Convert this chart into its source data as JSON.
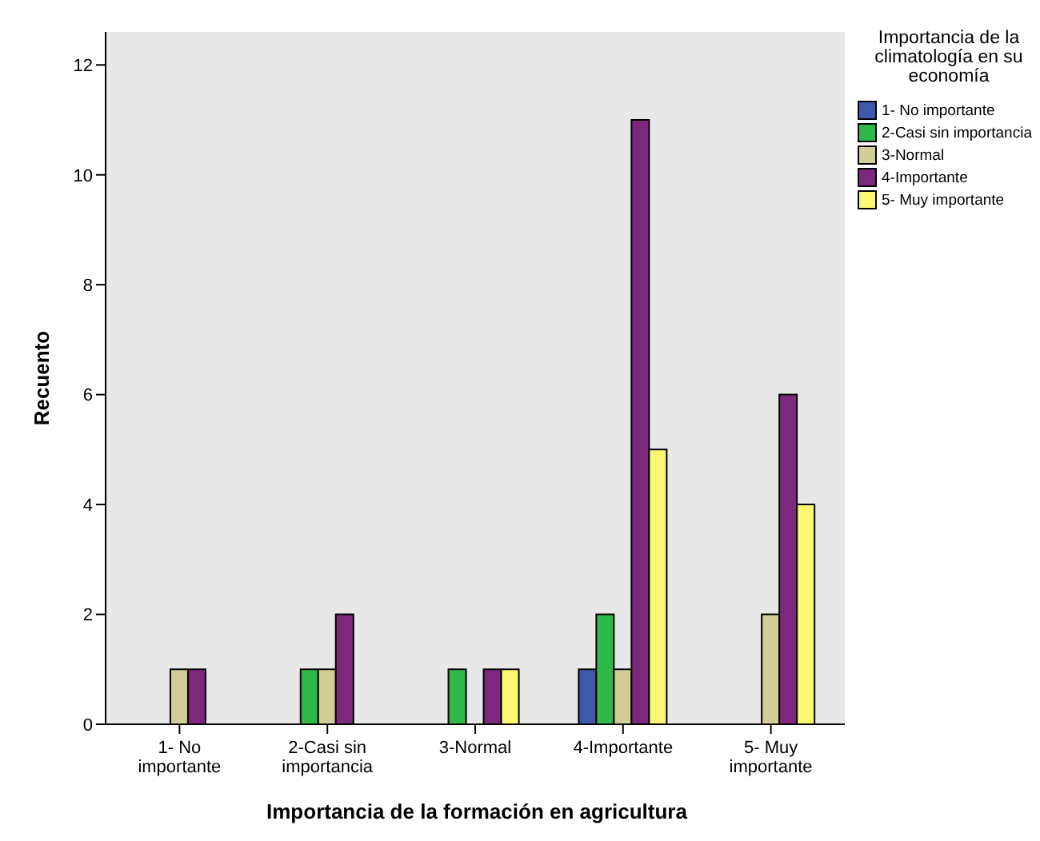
{
  "chart_data": {
    "type": "bar",
    "xlabel": "Importancia de la formación en agricultura",
    "ylabel": "Recuento",
    "legend_title": "Importancia de la climatología en su economía",
    "categories": [
      "1- No importante",
      "2-Casi sin importancia",
      "3-Normal",
      "4-Importante",
      "5- Muy importante"
    ],
    "series": [
      {
        "name": "1- No importante",
        "color": "#3e58ac",
        "values": [
          null,
          null,
          null,
          1,
          null
        ]
      },
      {
        "name": "2-Casi sin importancia",
        "color": "#2eb848",
        "values": [
          null,
          1,
          1,
          2,
          null
        ]
      },
      {
        "name": "3-Normal",
        "color": "#d3ce97",
        "values": [
          1,
          1,
          null,
          1,
          2
        ]
      },
      {
        "name": "4-Importante",
        "color": "#7c287d",
        "values": [
          1,
          2,
          1,
          11,
          6
        ]
      },
      {
        "name": "5- Muy importante",
        "color": "#fbf873",
        "values": [
          null,
          null,
          1,
          5,
          4
        ]
      }
    ],
    "ylim": [
      0,
      12.6
    ],
    "yticks": [
      0,
      2,
      4,
      6,
      8,
      10,
      12
    ],
    "grid": false,
    "legend": "top right"
  }
}
